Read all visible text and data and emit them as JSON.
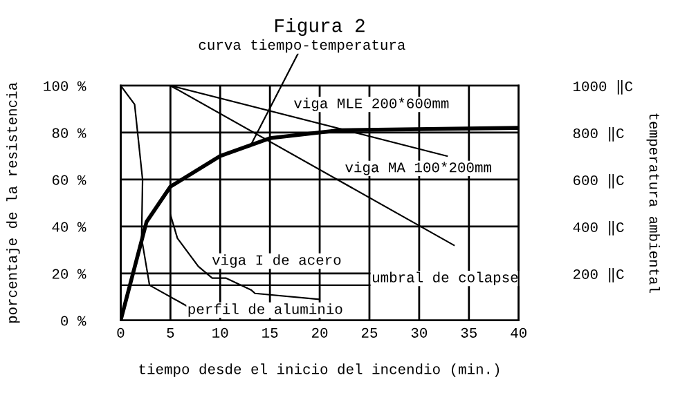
{
  "chart_data": {
    "type": "line",
    "title": "Figura 2",
    "xlabel": "tiempo desde el inicio del incendio (min.)",
    "ylabel": "porcentaje de la resistencia",
    "y2label": "temperatura ambiental",
    "xlim": [
      0,
      40
    ],
    "xticks": [
      0,
      5,
      10,
      15,
      20,
      25,
      30,
      35,
      40
    ],
    "ylim": [
      0,
      100
    ],
    "yticks": [
      {
        "value": 0,
        "label": "0 %"
      },
      {
        "value": 20,
        "label": "20 %"
      },
      {
        "value": 40,
        "label": "40 %"
      },
      {
        "value": 60,
        "label": "60 %"
      },
      {
        "value": 80,
        "label": "80 %"
      },
      {
        "value": 100,
        "label": "100 %"
      }
    ],
    "y2lim": [
      0,
      1000
    ],
    "y2ticks": [
      {
        "value": 200,
        "label": "200 ‖C"
      },
      {
        "value": 400,
        "label": "400 ‖C"
      },
      {
        "value": 600,
        "label": "600 ‖C"
      },
      {
        "value": 800,
        "label": "800 ‖C"
      },
      {
        "value": 1000,
        "label": "1000 ‖C"
      }
    ],
    "grid": true,
    "legend": false,
    "marker": "none",
    "line_style": "solid",
    "series": [
      {
        "color": "#000000",
        "axis": "y2",
        "x": [
          0,
          2.6,
          5,
          10,
          15,
          22,
          40
        ],
        "values": [
          0,
          420,
          570,
          700,
          776,
          810,
          820
        ]
      },
      {
        "color": "#000000",
        "x": [
          5,
          32.8
        ],
        "values": [
          100,
          70
        ]
      },
      {
        "color": "#000000",
        "x": [
          5,
          33.5
        ],
        "values": [
          100,
          32
        ]
      },
      {
        "color": "#000000",
        "x": [
          5,
          5.7,
          7.8,
          9.2,
          10.6,
          13.1,
          13.5,
          19.9
        ],
        "values": [
          45,
          35,
          23,
          18,
          18,
          13,
          11.5,
          9
        ]
      },
      {
        "color": "#000000",
        "x": [
          0,
          1.4,
          2.2,
          2.1,
          2.9,
          6.7
        ],
        "values": [
          100,
          92,
          60,
          35,
          15,
          6
        ]
      }
    ],
    "ref_lines": [
      {
        "axis": "y",
        "value": 15,
        "label": "umbral de colapse",
        "color": "#000000",
        "line_style": "solid"
      }
    ],
    "annotations": [
      {
        "text": "curva tiempo-temperatura",
        "x": 13,
        "y": 74
      },
      "viga MLE 200*600mm",
      {
        "text": "viga MA 100*200mm",
        "x": 22,
        "y": 59
      },
      {
        "text": "viga I de acero",
        "x": 8,
        "y": 22
      },
      {
        "text": "perfil de aluminio",
        "x": 6.7,
        "y": 6
      }
    ]
  }
}
